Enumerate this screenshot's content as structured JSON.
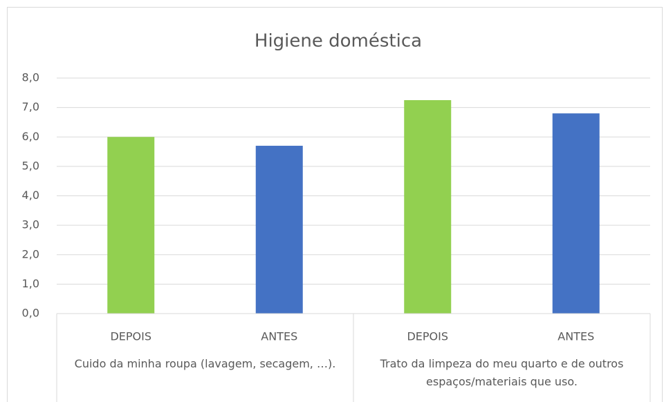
{
  "chart_data": {
    "type": "bar",
    "title": "Higiene doméstica",
    "groups": [
      {
        "label": "Cuido da minha roupa (lavagem, secagem, …).",
        "categories": [
          "DEPOIS",
          "ANTES"
        ],
        "values": [
          6.0,
          5.7
        ]
      },
      {
        "label": "Trato da limpeza do meu quarto e de outros espaços/materiais que uso.",
        "categories": [
          "DEPOIS",
          "ANTES"
        ],
        "values": [
          7.25,
          6.8
        ]
      }
    ],
    "colors": [
      "#92d050",
      "#4472c4"
    ],
    "ylim": [
      0,
      8
    ],
    "yticks": [
      {
        "value": 0,
        "label": "0,0"
      },
      {
        "value": 1,
        "label": "1,0"
      },
      {
        "value": 2,
        "label": "2,0"
      },
      {
        "value": 3,
        "label": "3,0"
      },
      {
        "value": 4,
        "label": "4,0"
      },
      {
        "value": 5,
        "label": "5,0"
      },
      {
        "value": 6,
        "label": "6,0"
      },
      {
        "value": 7,
        "label": "7,0"
      },
      {
        "value": 8,
        "label": "8,0"
      }
    ],
    "grid": true
  }
}
